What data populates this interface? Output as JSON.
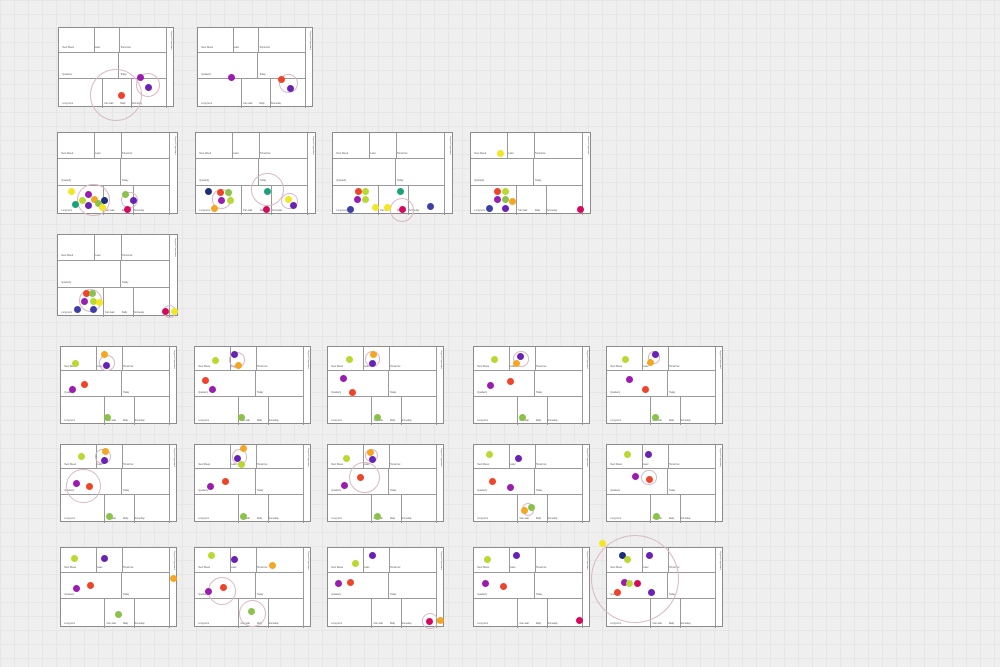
{
  "page": {
    "title": ""
  },
  "colors": {
    "red": "#f0432a",
    "purple": "#9b1db0",
    "violet": "#6a22b5",
    "orange": "#f5a623",
    "yellow": "#f2e722",
    "lime": "#b9d830",
    "green": "#8bc34a",
    "teal": "#1aa37a",
    "navy": "#1d2f7a",
    "blue": "#3d3fa8",
    "magenta": "#d6095e",
    "ring": "#d9b8c4"
  },
  "board_template": {
    "side_label": "Urgent & Important",
    "zone_labels": [
      "Next Week",
      "Later",
      "Tomorrow",
      "Quarterly",
      "Today",
      "Long term",
      "Someday",
      "Can wait",
      "Daily"
    ]
  },
  "boards": [
    {
      "id": "A1",
      "dots": [
        [
          "red",
          0.55,
          0.85
        ],
        [
          "violet",
          0.78,
          0.75
        ],
        [
          "purple",
          0.71,
          0.63
        ]
      ],
      "rings": [
        [
          0.5,
          0.85,
          0.33
        ],
        [
          0.78,
          0.72,
          0.15
        ]
      ]
    },
    {
      "id": "A2",
      "dots": [
        [
          "purple",
          0.3,
          0.63
        ],
        [
          "red",
          0.73,
          0.65
        ],
        [
          "violet",
          0.81,
          0.77
        ]
      ],
      "rings": [
        [
          0.79,
          0.71,
          0.12
        ]
      ]
    },
    {
      "id": "B1",
      "dots": [
        [
          "yellow",
          0.12,
          0.73
        ],
        [
          "purple",
          0.26,
          0.76
        ],
        [
          "lime",
          0.21,
          0.83
        ],
        [
          "orange",
          0.31,
          0.82
        ],
        [
          "navy",
          0.39,
          0.83
        ],
        [
          "teal",
          0.15,
          0.88
        ],
        [
          "violet",
          0.26,
          0.9
        ],
        [
          "green",
          0.34,
          0.87
        ],
        [
          "yellow",
          0.38,
          0.92
        ],
        [
          "green",
          0.57,
          0.76
        ],
        [
          "violet",
          0.63,
          0.83
        ],
        [
          "magenta",
          0.58,
          0.95
        ]
      ],
      "rings": [
        [
          0.3,
          0.83,
          0.2
        ],
        [
          0.6,
          0.83,
          0.1
        ]
      ]
    },
    {
      "id": "B2",
      "dots": [
        [
          "navy",
          0.11,
          0.73
        ],
        [
          "red",
          0.21,
          0.74
        ],
        [
          "green",
          0.28,
          0.74
        ],
        [
          "purple",
          0.22,
          0.83
        ],
        [
          "lime",
          0.29,
          0.83
        ],
        [
          "orange",
          0.16,
          0.93
        ],
        [
          "teal",
          0.6,
          0.72
        ],
        [
          "yellow",
          0.77,
          0.82
        ],
        [
          "violet",
          0.81,
          0.9
        ],
        [
          "magenta",
          0.59,
          0.95
        ]
      ],
      "rings": [
        [
          0.22,
          0.82,
          0.12
        ],
        [
          0.6,
          0.7,
          0.2
        ],
        [
          0.78,
          0.84,
          0.1
        ]
      ]
    },
    {
      "id": "B3",
      "dots": [
        [
          "red",
          0.22,
          0.73
        ],
        [
          "lime",
          0.28,
          0.73
        ],
        [
          "purple",
          0.21,
          0.82
        ],
        [
          "lime",
          0.28,
          0.82
        ],
        [
          "blue",
          0.15,
          0.94
        ],
        [
          "yellow",
          0.36,
          0.92
        ],
        [
          "yellow",
          0.46,
          0.92
        ],
        [
          "teal",
          0.57,
          0.72
        ],
        [
          "magenta",
          0.58,
          0.95
        ],
        [
          "blue",
          0.81,
          0.91
        ]
      ],
      "rings": [
        [
          0.58,
          0.95,
          0.15
        ]
      ]
    },
    {
      "id": "B4",
      "dots": [
        [
          "yellow",
          0.25,
          0.26
        ],
        [
          "red",
          0.23,
          0.73
        ],
        [
          "lime",
          0.29,
          0.73
        ],
        [
          "purple",
          0.23,
          0.82
        ],
        [
          "green",
          0.29,
          0.82
        ],
        [
          "orange",
          0.35,
          0.85
        ],
        [
          "blue",
          0.16,
          0.93
        ],
        [
          "violet",
          0.29,
          0.93
        ],
        [
          "magenta",
          0.91,
          0.94
        ]
      ],
      "rings": []
    },
    {
      "id": "C1",
      "dots": [
        [
          "red",
          0.24,
          0.73
        ],
        [
          "green",
          0.29,
          0.73
        ],
        [
          "purple",
          0.23,
          0.82
        ],
        [
          "lime",
          0.3,
          0.82
        ],
        [
          "yellow",
          0.35,
          0.84
        ],
        [
          "blue",
          0.17,
          0.92
        ],
        [
          "blue",
          0.3,
          0.92
        ],
        [
          "magenta",
          0.9,
          0.94
        ],
        [
          "yellow",
          0.97,
          0.94
        ]
      ],
      "rings": [
        [
          0.28,
          0.81,
          0.14
        ],
        [
          0.93,
          0.94,
          0.08
        ]
      ]
    },
    {
      "id": "D1",
      "dots": [
        [
          "orange",
          0.38,
          0.11
        ],
        [
          "violet",
          0.4,
          0.25
        ],
        [
          "lime",
          0.13,
          0.22
        ],
        [
          "red",
          0.21,
          0.49
        ],
        [
          "purple",
          0.11,
          0.56
        ],
        [
          "green",
          0.41,
          0.92
        ]
      ],
      "rings": [
        [
          0.4,
          0.22,
          0.1
        ]
      ]
    },
    {
      "id": "D2",
      "dots": [
        [
          "violet",
          0.35,
          0.11
        ],
        [
          "orange",
          0.38,
          0.25
        ],
        [
          "lime",
          0.18,
          0.18
        ],
        [
          "red",
          0.1,
          0.44
        ],
        [
          "purple",
          0.16,
          0.56
        ],
        [
          "green",
          0.41,
          0.92
        ]
      ],
      "rings": [
        [
          0.37,
          0.18,
          0.1
        ]
      ]
    },
    {
      "id": "D3",
      "dots": [
        [
          "orange",
          0.4,
          0.11
        ],
        [
          "violet",
          0.39,
          0.22
        ],
        [
          "lime",
          0.19,
          0.17
        ],
        [
          "purple",
          0.14,
          0.42
        ],
        [
          "red",
          0.22,
          0.59
        ],
        [
          "green",
          0.43,
          0.92
        ]
      ],
      "rings": [
        [
          0.39,
          0.17,
          0.1
        ]
      ]
    },
    {
      "id": "D4",
      "dots": [
        [
          "violet",
          0.41,
          0.14
        ],
        [
          "orange",
          0.37,
          0.22
        ],
        [
          "lime",
          0.18,
          0.17
        ],
        [
          "red",
          0.32,
          0.46
        ],
        [
          "purple",
          0.15,
          0.51
        ],
        [
          "green",
          0.42,
          0.92
        ]
      ],
      "rings": [
        [
          0.41,
          0.17,
          0.1
        ]
      ]
    },
    {
      "id": "D5",
      "dots": [
        [
          "violet",
          0.42,
          0.11
        ],
        [
          "orange",
          0.38,
          0.21
        ],
        [
          "lime",
          0.17,
          0.17
        ],
        [
          "purple",
          0.2,
          0.43
        ],
        [
          "red",
          0.34,
          0.56
        ],
        [
          "green",
          0.42,
          0.92
        ]
      ],
      "rings": [
        [
          0.41,
          0.15,
          0.08
        ]
      ]
    },
    {
      "id": "E1",
      "dots": [
        [
          "orange",
          0.39,
          0.09
        ],
        [
          "violet",
          0.38,
          0.21
        ],
        [
          "lime",
          0.18,
          0.16
        ],
        [
          "purple",
          0.14,
          0.5
        ],
        [
          "red",
          0.25,
          0.55
        ],
        [
          "green",
          0.42,
          0.93
        ]
      ],
      "rings": [
        [
          0.37,
          0.16,
          0.1
        ],
        [
          0.2,
          0.54,
          0.22
        ]
      ]
    },
    {
      "id": "E2",
      "dots": [
        [
          "orange",
          0.42,
          0.06
        ],
        [
          "violet",
          0.37,
          0.18
        ],
        [
          "lime",
          0.41,
          0.26
        ],
        [
          "red",
          0.27,
          0.48
        ],
        [
          "purple",
          0.14,
          0.54
        ],
        [
          "green",
          0.42,
          0.93
        ]
      ],
      "rings": [
        [
          0.39,
          0.17,
          0.1
        ]
      ]
    },
    {
      "id": "E3",
      "dots": [
        [
          "orange",
          0.37,
          0.11
        ],
        [
          "violet",
          0.39,
          0.2
        ],
        [
          "lime",
          0.17,
          0.18
        ],
        [
          "red",
          0.29,
          0.43
        ],
        [
          "purple",
          0.15,
          0.53
        ],
        [
          "green",
          0.43,
          0.93
        ]
      ],
      "rings": [
        [
          0.32,
          0.43,
          0.2
        ],
        [
          0.38,
          0.15,
          0.08
        ]
      ]
    },
    {
      "id": "E4",
      "dots": [
        [
          "lime",
          0.14,
          0.13
        ],
        [
          "violet",
          0.39,
          0.18
        ],
        [
          "red",
          0.17,
          0.48
        ],
        [
          "purple",
          0.32,
          0.56
        ],
        [
          "orange",
          0.44,
          0.85
        ],
        [
          "green",
          0.5,
          0.82
        ]
      ],
      "rings": [
        [
          0.47,
          0.84,
          0.08
        ]
      ]
    },
    {
      "id": "E5",
      "dots": [
        [
          "lime",
          0.18,
          0.13
        ],
        [
          "violet",
          0.36,
          0.13
        ],
        [
          "purple",
          0.25,
          0.42
        ],
        [
          "red",
          0.37,
          0.46
        ],
        [
          "green",
          0.43,
          0.93
        ]
      ],
      "rings": [
        [
          0.37,
          0.43,
          0.1
        ]
      ]
    },
    {
      "id": "F1",
      "dots": [
        [
          "lime",
          0.12,
          0.14
        ],
        [
          "violet",
          0.38,
          0.14
        ],
        [
          "red",
          0.26,
          0.48
        ],
        [
          "purple",
          0.14,
          0.52
        ],
        [
          "orange",
          0.97,
          0.39
        ],
        [
          "green",
          0.5,
          0.84
        ]
      ],
      "rings": []
    },
    {
      "id": "F2",
      "dots": [
        [
          "lime",
          0.15,
          0.1
        ],
        [
          "violet",
          0.35,
          0.16
        ],
        [
          "orange",
          0.67,
          0.23
        ],
        [
          "red",
          0.25,
          0.5
        ],
        [
          "purple",
          0.12,
          0.55
        ],
        [
          "green",
          0.49,
          0.81
        ]
      ],
      "rings": [
        [
          0.24,
          0.55,
          0.18
        ],
        [
          0.5,
          0.83,
          0.17
        ]
      ]
    },
    {
      "id": "F3",
      "dots": [
        [
          "lime",
          0.24,
          0.2
        ],
        [
          "violet",
          0.39,
          0.1
        ],
        [
          "red",
          0.2,
          0.44
        ],
        [
          "purple",
          0.1,
          0.46
        ],
        [
          "magenta",
          0.88,
          0.93
        ],
        [
          "orange",
          0.97,
          0.92
        ]
      ],
      "rings": [
        [
          0.88,
          0.93,
          0.1
        ]
      ]
    },
    {
      "id": "F4",
      "dots": [
        [
          "lime",
          0.12,
          0.16
        ],
        [
          "violet",
          0.37,
          0.1
        ],
        [
          "red",
          0.26,
          0.49
        ],
        [
          "purple",
          0.11,
          0.46
        ],
        [
          "magenta",
          0.91,
          0.92
        ]
      ],
      "rings": []
    },
    {
      "id": "F5",
      "dots": [
        [
          "navy",
          0.14,
          0.1
        ],
        [
          "lime",
          0.18,
          0.16
        ],
        [
          "violet",
          0.37,
          0.1
        ],
        [
          "purple",
          0.16,
          0.44
        ],
        [
          "lime",
          0.2,
          0.46
        ],
        [
          "magenta",
          0.27,
          0.46
        ],
        [
          "red",
          0.1,
          0.57
        ],
        [
          "violet",
          0.39,
          0.57
        ],
        [
          "yellow",
          -0.03,
          -0.05
        ]
      ],
      "rings": [
        [
          0.25,
          0.4,
          0.55
        ]
      ]
    }
  ]
}
